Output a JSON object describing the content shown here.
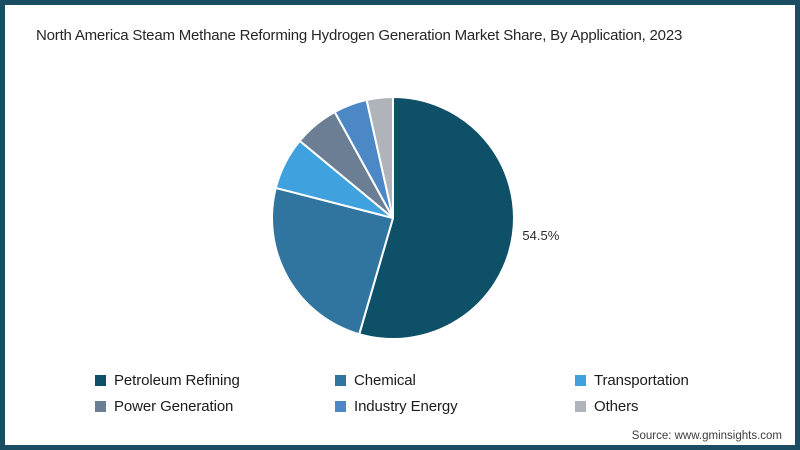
{
  "frame": {
    "border_color": "#1a4c62",
    "background": "#ffffff"
  },
  "source": "Source: www.gminsights.com",
  "chart_data": {
    "type": "pie",
    "title": "North America Steam Methane Reforming Hydrogen Generation Market Share, By Application, 2023",
    "unit": "%",
    "start_angle_deg": 0,
    "direction": "clockwise",
    "legend_position": "bottom",
    "slices": [
      {
        "label": "Petroleum Refining",
        "value": 54.5,
        "color": "#0d5068",
        "data_label": "54.5%"
      },
      {
        "label": "Chemical",
        "value": 24.5,
        "color": "#3074a0"
      },
      {
        "label": "Transportation",
        "value": 7.0,
        "color": "#3fa2de"
      },
      {
        "label": "Power Generation",
        "value": 6.0,
        "color": "#6b7e93"
      },
      {
        "label": "Industry Energy",
        "value": 4.5,
        "color": "#4c87c6"
      },
      {
        "label": "Others",
        "value": 3.5,
        "color": "#aeb4ba"
      }
    ]
  }
}
